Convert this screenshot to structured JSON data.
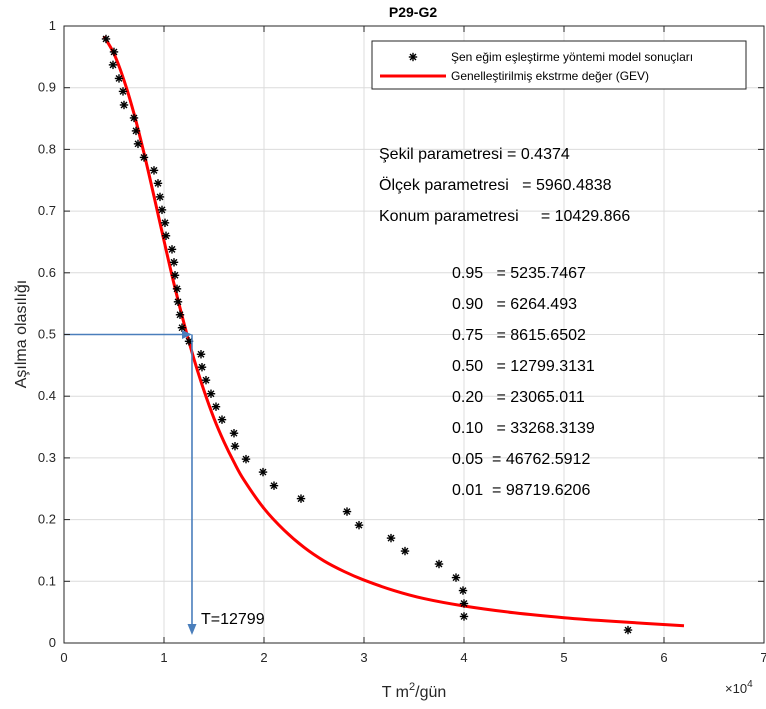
{
  "chart_data": {
    "type": "scatter",
    "title": "P29-G2",
    "xlabel": "T m",
    "xlabel_sup": "2",
    "xlabel_suffix": "/gün",
    "x_exponent_base": "×10",
    "x_exponent_power": "4",
    "ylabel": "Aşılma olasılığı",
    "xlim": [
      0,
      70000
    ],
    "ylim": [
      0,
      1
    ],
    "xticks": [
      0,
      1,
      2,
      3,
      4,
      5,
      6,
      7
    ],
    "yticks": [
      "0",
      "0.1",
      "0.2",
      "0.3",
      "0.4",
      "0.5",
      "0.6",
      "0.7",
      "0.8",
      "0.9",
      "1"
    ],
    "grid": true,
    "legend_position": "top-right",
    "series": [
      {
        "name": "Şen eğim eşleştirme yöntemi model sonuçları",
        "kind": "scatter",
        "marker": "*",
        "color": "#000000",
        "points": [
          [
            4200,
            0.979
          ],
          [
            5000,
            0.958
          ],
          [
            4900,
            0.937
          ],
          [
            5500,
            0.915
          ],
          [
            5900,
            0.894
          ],
          [
            6000,
            0.872
          ],
          [
            7000,
            0.851
          ],
          [
            7200,
            0.83
          ],
          [
            7400,
            0.809
          ],
          [
            8000,
            0.787
          ],
          [
            9000,
            0.766
          ],
          [
            9400,
            0.745
          ],
          [
            9600,
            0.723
          ],
          [
            9800,
            0.702
          ],
          [
            10100,
            0.681
          ],
          [
            10200,
            0.66
          ],
          [
            10800,
            0.638
          ],
          [
            11000,
            0.617
          ],
          [
            11100,
            0.596
          ],
          [
            11300,
            0.574
          ],
          [
            11400,
            0.553
          ],
          [
            11600,
            0.532
          ],
          [
            11800,
            0.511
          ],
          [
            12500,
            0.489
          ],
          [
            13700,
            0.468
          ],
          [
            13800,
            0.447
          ],
          [
            14200,
            0.426
          ],
          [
            14700,
            0.404
          ],
          [
            15200,
            0.383
          ],
          [
            15800,
            0.362
          ],
          [
            17000,
            0.34
          ],
          [
            17100,
            0.319
          ],
          [
            18200,
            0.298
          ],
          [
            19900,
            0.277
          ],
          [
            21000,
            0.255
          ],
          [
            23700,
            0.234
          ],
          [
            28300,
            0.213
          ],
          [
            29500,
            0.191
          ],
          [
            32700,
            0.17
          ],
          [
            34100,
            0.149
          ],
          [
            37500,
            0.128
          ],
          [
            39200,
            0.106
          ],
          [
            39900,
            0.085
          ],
          [
            40000,
            0.064
          ],
          [
            40000,
            0.043
          ],
          [
            56400,
            0.021
          ]
        ]
      },
      {
        "name": "Genelleştirilmiş ekstrme değer (GEV)",
        "kind": "line",
        "color": "#ff0000",
        "points": [
          [
            4000,
            0.983
          ],
          [
            5000,
            0.955
          ],
          [
            6000,
            0.912
          ],
          [
            7000,
            0.858
          ],
          [
            8000,
            0.794
          ],
          [
            9000,
            0.724
          ],
          [
            10000,
            0.652
          ],
          [
            11000,
            0.582
          ],
          [
            12000,
            0.518
          ],
          [
            13000,
            0.46
          ],
          [
            14000,
            0.409
          ],
          [
            15000,
            0.364
          ],
          [
            16000,
            0.326
          ],
          [
            17000,
            0.293
          ],
          [
            18000,
            0.264
          ],
          [
            20000,
            0.218
          ],
          [
            22000,
            0.183
          ],
          [
            24000,
            0.155
          ],
          [
            26000,
            0.133
          ],
          [
            28000,
            0.116
          ],
          [
            30000,
            0.102
          ],
          [
            33000,
            0.085
          ],
          [
            36000,
            0.072
          ],
          [
            40000,
            0.06
          ],
          [
            45000,
            0.049
          ],
          [
            50000,
            0.041
          ],
          [
            55000,
            0.035
          ],
          [
            62000,
            0.028
          ]
        ]
      }
    ],
    "annotations": {
      "params": [
        "Şekil parametresi = 0.4374",
        "Ölçek parametresi   = 5960.4838",
        "Konum parametresi     = 10429.866"
      ],
      "quantiles": [
        "0.95   = 5235.7467",
        "0.90   = 6264.493",
        "0.75   = 8615.6502",
        "0.50   = 12799.3131",
        "0.20   = 23065.011",
        "0.10   = 33268.3139",
        "0.05  = 46762.5912",
        "0.01  = 98719.6206"
      ],
      "arrow_label": "T=12799",
      "arrow_value": {
        "x": 12799,
        "y": 0.5
      },
      "arrow_color": "#4a7ebb"
    }
  }
}
